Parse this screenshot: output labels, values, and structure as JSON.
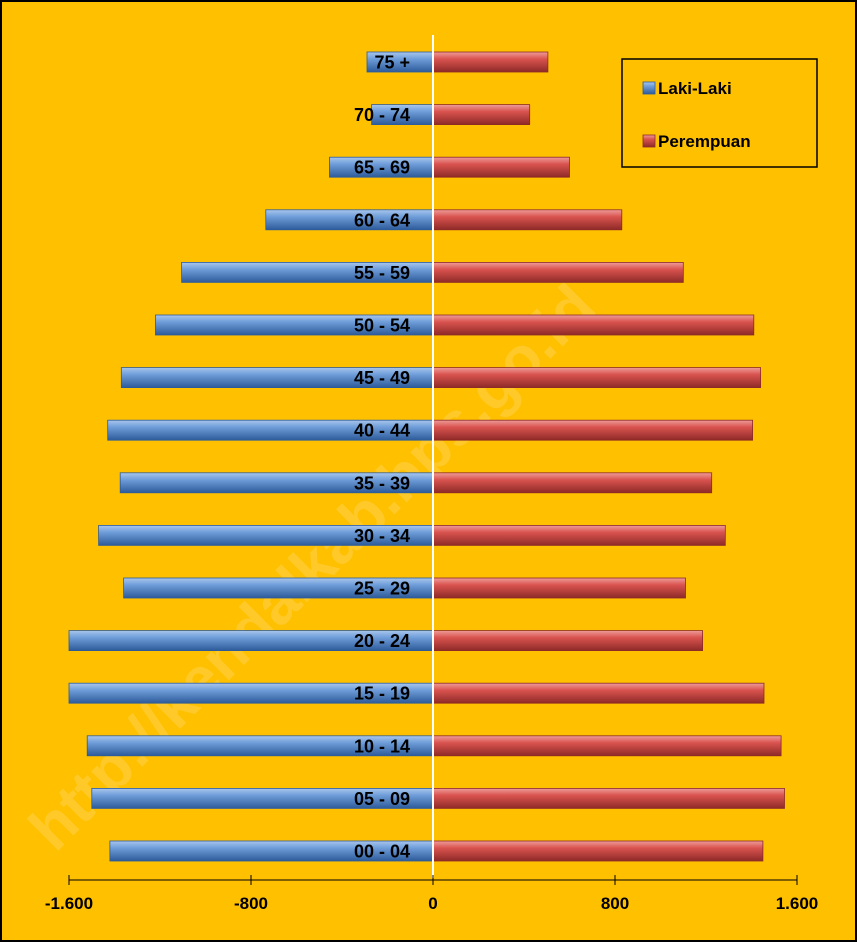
{
  "watermark": "http://kendalkab.bps.go.id",
  "colors": {
    "background": "#FFC000",
    "male": "#4F81BD",
    "female": "#C0504D"
  },
  "chart_data": {
    "type": "bar",
    "orientation": "horizontal",
    "style": "population-pyramid",
    "categories": [
      "00 - 04",
      "05 - 09",
      "10 - 14",
      "15 - 19",
      "20 - 24",
      "25 - 29",
      "30 - 34",
      "35 - 39",
      "40 - 44",
      "45 - 49",
      "50 - 54",
      "55 - 59",
      "60 - 64",
      "65 - 69",
      "70 - 74",
      "75 +"
    ],
    "series": [
      {
        "name": "Laki-Laki",
        "color": "#4F81BD",
        "values": [
          -1420,
          -1500,
          -1520,
          -1600,
          -1600,
          -1360,
          -1470,
          -1375,
          -1430,
          -1370,
          -1220,
          -1105,
          -735,
          -455,
          -270,
          -290
        ]
      },
      {
        "name": "Perempuan",
        "color": "#C0504D",
        "values": [
          1450,
          1545,
          1530,
          1455,
          1185,
          1110,
          1285,
          1225,
          1405,
          1440,
          1410,
          1100,
          830,
          600,
          425,
          505
        ]
      }
    ],
    "xlim": [
      -1600,
      1600
    ],
    "xticks": [
      -1600,
      -800,
      0,
      800,
      1600
    ],
    "xtick_labels": [
      "-1.600",
      "-800",
      "0",
      "800",
      "1.600"
    ],
    "grid": false,
    "legend": {
      "placement": "top-right",
      "entries": [
        "Laki-Laki",
        "Perempuan"
      ]
    },
    "title": "",
    "xlabel": "",
    "ylabel": ""
  }
}
